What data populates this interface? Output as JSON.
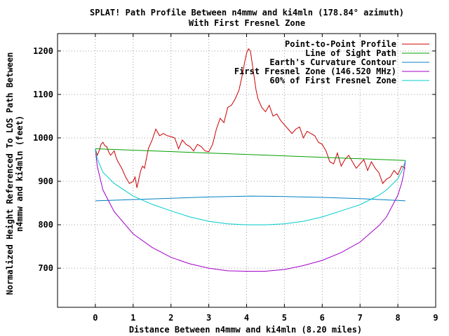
{
  "chart_data": {
    "type": "line",
    "title_lines": [
      "SPLAT! Path Profile Between n4mmw and ki4mln (178.84° azimuth)",
      "With First Fresnel Zone"
    ],
    "xlabel": "Distance Between n4mmw and ki4mln (8.20 miles)",
    "ylabel_lines": [
      "Normalized Height Referenced To LOS Path Between",
      "n4mmw and ki4mln (feet)"
    ],
    "xlim": [
      -1,
      9
    ],
    "ylim": [
      610,
      1240
    ],
    "x_ticks": [
      "0",
      "1",
      "2",
      "3",
      "4",
      "5",
      "6",
      "7",
      "8",
      "9"
    ],
    "y_ticks": [
      "700",
      "800",
      "900",
      "1000",
      "1100",
      "1200"
    ],
    "grid": true,
    "legend_position": "top-right",
    "series": [
      {
        "name": "Point-to-Point Profile",
        "color": "#cc0000",
        "x": [
          0.0,
          0.05,
          0.1,
          0.15,
          0.2,
          0.25,
          0.3,
          0.35,
          0.4,
          0.45,
          0.5,
          0.55,
          0.6,
          0.7,
          0.8,
          0.9,
          1.0,
          1.05,
          1.1,
          1.15,
          1.2,
          1.25,
          1.3,
          1.4,
          1.5,
          1.6,
          1.7,
          1.8,
          1.9,
          2.0,
          2.1,
          2.2,
          2.3,
          2.4,
          2.5,
          2.6,
          2.7,
          2.8,
          2.9,
          3.0,
          3.1,
          3.2,
          3.3,
          3.4,
          3.5,
          3.6,
          3.7,
          3.8,
          3.9,
          3.95,
          4.0,
          4.05,
          4.1,
          4.15,
          4.2,
          4.25,
          4.3,
          4.4,
          4.5,
          4.6,
          4.7,
          4.8,
          4.9,
          5.0,
          5.1,
          5.2,
          5.3,
          5.4,
          5.5,
          5.6,
          5.7,
          5.8,
          5.9,
          6.0,
          6.1,
          6.2,
          6.3,
          6.4,
          6.5,
          6.6,
          6.7,
          6.8,
          6.9,
          7.0,
          7.1,
          7.2,
          7.3,
          7.4,
          7.5,
          7.6,
          7.7,
          7.8,
          7.9,
          8.0,
          8.1,
          8.2
        ],
        "y": [
          975,
          960,
          970,
          985,
          990,
          982,
          980,
          968,
          960,
          965,
          970,
          955,
          945,
          930,
          910,
          895,
          900,
          910,
          885,
          905,
          925,
          935,
          930,
          975,
          995,
          1020,
          1005,
          1010,
          1005,
          1003,
          1000,
          975,
          995,
          985,
          980,
          970,
          985,
          980,
          970,
          968,
          985,
          1020,
          1045,
          1035,
          1070,
          1075,
          1090,
          1110,
          1150,
          1175,
          1195,
          1205,
          1200,
          1170,
          1140,
          1110,
          1090,
          1070,
          1060,
          1075,
          1050,
          1055,
          1040,
          1030,
          1020,
          1010,
          1020,
          1025,
          1000,
          1015,
          1010,
          1005,
          990,
          985,
          970,
          945,
          940,
          965,
          935,
          950,
          960,
          945,
          930,
          940,
          950,
          925,
          945,
          930,
          920,
          895,
          905,
          910,
          925,
          915,
          935,
          930
        ]
      },
      {
        "name": "Line of Sight Path",
        "color": "#00a000",
        "x": [
          0.0,
          8.2
        ],
        "y": [
          975,
          948
        ]
      },
      {
        "name": "Earth's Curvature Contour",
        "color": "#0080c0",
        "x": [
          0.0,
          1.0,
          2.0,
          3.0,
          4.1,
          5.0,
          6.0,
          7.0,
          8.2
        ],
        "y": [
          855,
          858,
          861,
          864,
          866,
          865,
          863,
          860,
          855
        ]
      },
      {
        "name": "First Fresnel Zone (146.520 MHz)",
        "color": "#a000c8",
        "x": [
          0.0,
          0.05,
          0.2,
          0.5,
          1.0,
          1.5,
          2.0,
          2.5,
          3.0,
          3.5,
          4.0,
          4.5,
          5.0,
          5.5,
          6.0,
          6.5,
          7.0,
          7.5,
          7.7,
          8.0,
          8.1,
          8.15,
          8.2
        ],
        "y": [
          975,
          935,
          880,
          830,
          779,
          748,
          725,
          710,
          700,
          694,
          693,
          693,
          697,
          706,
          718,
          736,
          760,
          798,
          818,
          868,
          896,
          915,
          948
        ]
      },
      {
        "name": "60% of First Fresnel Zone",
        "color": "#00cccc",
        "x": [
          0.0,
          0.05,
          0.2,
          0.5,
          1.0,
          1.5,
          2.0,
          2.5,
          3.0,
          3.5,
          4.0,
          4.5,
          5.0,
          5.5,
          6.0,
          6.5,
          7.0,
          7.5,
          7.7,
          8.0,
          8.1,
          8.15,
          8.2
        ],
        "y": [
          975,
          952,
          921,
          895,
          866,
          847,
          832,
          818,
          808,
          802,
          800,
          800,
          802,
          808,
          818,
          832,
          846,
          868,
          880,
          906,
          923,
          934,
          948
        ]
      }
    ]
  }
}
